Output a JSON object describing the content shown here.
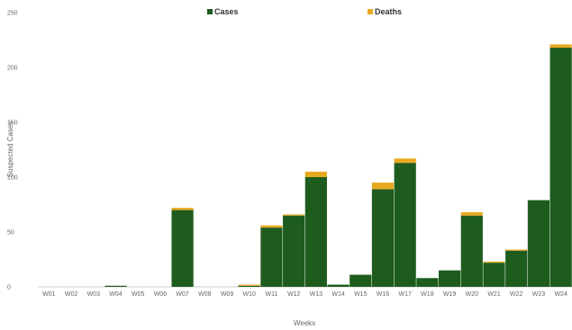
{
  "chart_data": {
    "type": "bar",
    "stacked": true,
    "categories": [
      "W01",
      "W02",
      "W03",
      "W04",
      "W05",
      "W06",
      "W07",
      "W08",
      "W09",
      "W10",
      "W11",
      "W12",
      "W13",
      "W14",
      "W15",
      "W16",
      "W17",
      "W18",
      "W19",
      "W20",
      "W21",
      "W22",
      "W23",
      "W24"
    ],
    "series": [
      {
        "name": "Cases",
        "color": "#1e5c1e",
        "values": [
          0,
          0,
          0,
          1,
          0,
          0,
          70,
          0,
          0,
          1,
          54,
          65,
          100,
          2,
          11,
          89,
          113,
          8,
          15,
          65,
          22,
          33,
          79,
          218
        ]
      },
      {
        "name": "Deaths",
        "color": "#e8a920",
        "values": [
          0,
          0,
          0,
          0,
          0,
          0,
          2,
          0,
          0,
          1,
          2,
          1,
          5,
          0,
          0,
          6,
          4,
          0,
          0,
          3,
          1,
          1,
          0,
          3
        ]
      }
    ],
    "title": "",
    "xlabel": "Weeks",
    "ylabel": "Suspected Cases",
    "ylim": [
      0,
      250
    ],
    "yticks": [
      0,
      50,
      100,
      150,
      200,
      250
    ],
    "legend_position": "top",
    "grid": false
  }
}
